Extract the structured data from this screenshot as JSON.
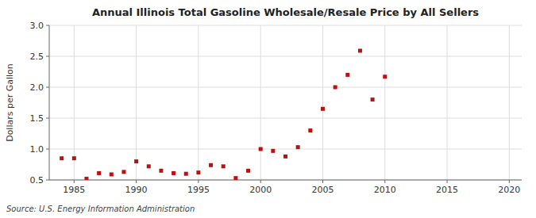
{
  "chart_data": {
    "type": "scatter",
    "title": "Annual Illinois Total Gasoline Wholesale/Resale Price by All Sellers",
    "y_label": "Dollars per Gallon",
    "annotation": "Source: U.S. Energy Information Administration",
    "color": "#bb1111",
    "marker": "square",
    "x": [
      1984,
      1985,
      1986,
      1987,
      1988,
      1989,
      1990,
      1991,
      1992,
      1993,
      1994,
      1995,
      1996,
      1997,
      1998,
      1999,
      2000,
      2001,
      2002,
      2003,
      2004,
      2005,
      2006,
      2007,
      2008,
      2009,
      2010
    ],
    "values": [
      0.85,
      0.85,
      0.52,
      0.61,
      0.59,
      0.63,
      0.8,
      0.72,
      0.65,
      0.61,
      0.6,
      0.62,
      0.74,
      0.72,
      0.53,
      0.65,
      1.0,
      0.97,
      0.88,
      1.03,
      1.3,
      1.65,
      2.0,
      2.2,
      2.59,
      1.8,
      2.17
    ],
    "xlim": [
      1983,
      2021
    ],
    "ylim": [
      0.5,
      3.0
    ],
    "xticks": [
      1985,
      1990,
      1995,
      2000,
      2005,
      2010,
      2015,
      2020
    ],
    "yticks": [
      0.5,
      {
        "value": 1.0,
        "label": "1.0"
      },
      1.5,
      {
        "value": 2.0,
        "label": "2.0"
      },
      2.5,
      {
        "value": 3.0,
        "label": "3.0"
      }
    ],
    "grid": true
  }
}
